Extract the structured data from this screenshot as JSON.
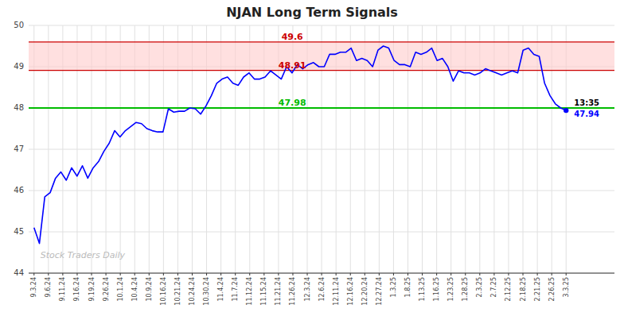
{
  "chart_data": {
    "type": "line",
    "title": "NJAN Long Term Signals",
    "color": "blue",
    "x": [
      0,
      1,
      2,
      3,
      4,
      5,
      6,
      7,
      8,
      9,
      10,
      11,
      12,
      13,
      14,
      15,
      16,
      17,
      18,
      19,
      20,
      21,
      22,
      23,
      24,
      25,
      26,
      27,
      28,
      29,
      30,
      31,
      32,
      33,
      34,
      35,
      36,
      37,
      38,
      39,
      40,
      41,
      42,
      43,
      44,
      45,
      46,
      47,
      48,
      49,
      50,
      51,
      52,
      53,
      54,
      55,
      56,
      57,
      58,
      59,
      60,
      61,
      62,
      63,
      64,
      65,
      66,
      67,
      68,
      69,
      70,
      71,
      72,
      73,
      74,
      75,
      76,
      77,
      78,
      79,
      80,
      81,
      82,
      83,
      84,
      85,
      86,
      87,
      88,
      89,
      90,
      91,
      92,
      93,
      94,
      95,
      96,
      97,
      98,
      99
    ],
    "values": [
      45.1,
      44.72,
      45.85,
      45.95,
      46.3,
      46.45,
      46.25,
      46.55,
      46.35,
      46.6,
      46.3,
      46.55,
      46.7,
      46.95,
      47.15,
      47.45,
      47.3,
      47.45,
      47.55,
      47.65,
      47.62,
      47.5,
      47.45,
      47.42,
      47.42,
      47.98,
      47.9,
      47.92,
      47.92,
      48.0,
      47.98,
      47.85,
      48.05,
      48.3,
      48.6,
      48.7,
      48.75,
      48.6,
      48.55,
      48.75,
      48.85,
      48.7,
      48.7,
      48.75,
      48.9,
      48.8,
      48.7,
      49.0,
      48.85,
      49.05,
      48.95,
      49.05,
      49.1,
      49.0,
      49.0,
      49.3,
      49.3,
      49.35,
      49.35,
      49.45,
      49.15,
      49.2,
      49.15,
      49.0,
      49.4,
      49.5,
      49.45,
      49.15,
      49.05,
      49.05,
      49.0,
      49.35,
      49.3,
      49.35,
      49.45,
      49.15,
      49.2,
      49.0,
      48.65,
      48.9,
      48.85,
      48.85,
      48.8,
      48.85,
      48.95,
      48.9,
      48.85,
      48.8,
      48.85,
      48.9,
      48.85,
      49.4,
      49.45,
      49.3,
      49.25,
      48.6,
      48.3,
      48.1,
      48.0,
      47.94
    ],
    "xlim": [
      -1,
      108
    ],
    "xticks": [
      {
        "value": 0,
        "label": "9.3.24"
      },
      {
        "value": 2.675675675675676,
        "label": "9.6.24"
      },
      {
        "value": 5.351351351351352,
        "label": "9.11.24"
      },
      {
        "value": 8.027027027027026,
        "label": "9.16.24"
      },
      {
        "value": 10.702702702702704,
        "label": "9.19.24"
      },
      {
        "value": 13.378378378378379,
        "label": "9.26.24"
      },
      {
        "value": 16.054054054054053,
        "label": "10.1.24"
      },
      {
        "value": 18.72972972972973,
        "label": "10.4.24"
      },
      {
        "value": 21.405405405405407,
        "label": "10.9.24"
      },
      {
        "value": 24.08108108108108,
        "label": "10.16.24"
      },
      {
        "value": 26.756756756756758,
        "label": "10.21.24"
      },
      {
        "value": 29.43243243243243,
        "label": "10.24.24"
      },
      {
        "value": 32.10810810810811,
        "label": "10.30.24"
      },
      {
        "value": 34.78378378378378,
        "label": "11.4.24"
      },
      {
        "value": 37.45945945945946,
        "label": "11.7.24"
      },
      {
        "value": 40.13513513513514,
        "label": "11.12.24"
      },
      {
        "value": 42.810810810810814,
        "label": "11.15.24"
      },
      {
        "value": 45.486486486486484,
        "label": "11.21.24"
      },
      {
        "value": 48.16216216216216,
        "label": "11.26.24"
      },
      {
        "value": 50.83783783783784,
        "label": "12.3.24"
      },
      {
        "value": 53.513513513513516,
        "label": "12.6.24"
      },
      {
        "value": 56.189189189189186,
        "label": "12.11.24"
      },
      {
        "value": 58.86486486486486,
        "label": "12.16.24"
      },
      {
        "value": 61.54054054054054,
        "label": "12.20.24"
      },
      {
        "value": 64.21621621621622,
        "label": "12.27.24"
      },
      {
        "value": 66.89189189189189,
        "label": "1.3.25"
      },
      {
        "value": 69.56756756756756,
        "label": "1.8.25"
      },
      {
        "value": 72.24324324324324,
        "label": "1.13.25"
      },
      {
        "value": 74.91891891891892,
        "label": "1.16.25"
      },
      {
        "value": 77.5945945945946,
        "label": "1.23.25"
      },
      {
        "value": 80.27027027027027,
        "label": "1.28.25"
      },
      {
        "value": 82.94594594594595,
        "label": "2.3.25"
      },
      {
        "value": 85.62162162162163,
        "label": "2.7.25"
      },
      {
        "value": 88.29729729729729,
        "label": "2.12.25"
      },
      {
        "value": 90.97297297297297,
        "label": "2.18.25"
      },
      {
        "value": 93.64864864864865,
        "label": "2.21.25"
      },
      {
        "value": 96.32432432432432,
        "label": "2.26.25"
      },
      {
        "value": 99,
        "label": "3.3.25"
      }
    ],
    "ylim": [
      44,
      50
    ],
    "yticks": [
      44,
      45,
      46,
      47,
      48,
      49,
      50
    ],
    "grid": true,
    "band": {
      "from": 48.91,
      "to": 49.6,
      "color": "#ffcccc"
    },
    "reference_lines": [
      {
        "value": 48.0,
        "label": "47.98",
        "color": "#00bb00"
      },
      {
        "value": 48.91,
        "label": "48.91",
        "color": "#cc0000"
      },
      {
        "value": 49.6,
        "label": "49.6",
        "color": "#cc0000"
      }
    ],
    "last_point": {
      "value": 47.94,
      "label": "47.94",
      "time": "13:35"
    },
    "watermark": "Stock Traders Daily"
  }
}
